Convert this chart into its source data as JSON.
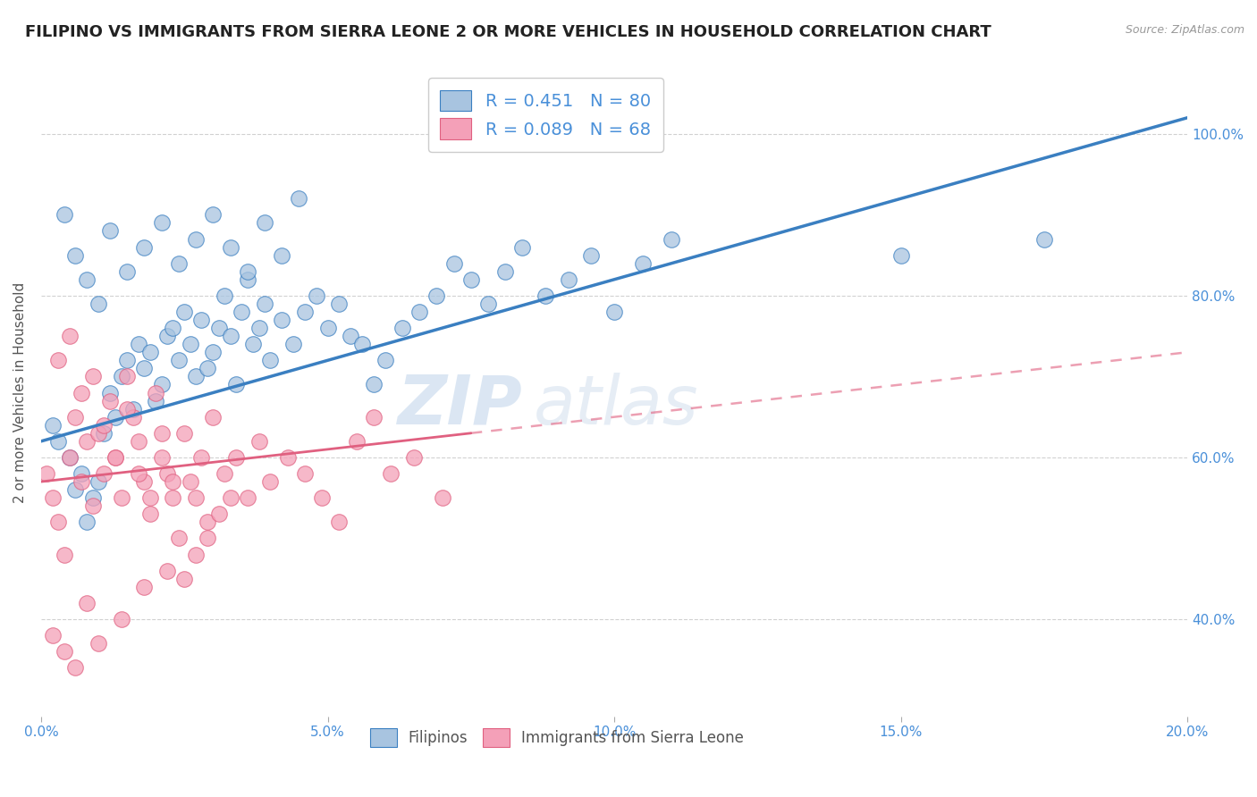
{
  "title": "FILIPINO VS IMMIGRANTS FROM SIERRA LEONE 2 OR MORE VEHICLES IN HOUSEHOLD CORRELATION CHART",
  "source": "Source: ZipAtlas.com",
  "ylabel": "2 or more Vehicles in Household",
  "watermark": "ZIPatlas",
  "filipinos": {
    "R": 0.451,
    "N": 80,
    "color": "#a8c4e0",
    "line_color": "#3a7fc1",
    "label": "Filipinos"
  },
  "sierra_leone": {
    "R": 0.089,
    "N": 68,
    "color": "#f4a0b8",
    "line_color": "#e06080",
    "label": "Immigrants from Sierra Leone"
  },
  "xlim": [
    0.0,
    20.0
  ],
  "ylim_bottom": 28.0,
  "ylim_top": 108.0,
  "yticks": [
    40.0,
    60.0,
    80.0,
    100.0
  ],
  "xticks": [
    0.0,
    5.0,
    10.0,
    15.0,
    20.0
  ],
  "background_color": "#ffffff",
  "grid_color": "#cccccc",
  "title_fontsize": 13,
  "axis_label_fontsize": 11,
  "tick_label_color": "#4a90d9",
  "legend_R_N_color": "#4a90d9",
  "fil_scatter_x": [
    0.2,
    0.3,
    0.5,
    0.6,
    0.7,
    0.8,
    0.9,
    1.0,
    1.1,
    1.2,
    1.3,
    1.4,
    1.5,
    1.6,
    1.7,
    1.8,
    1.9,
    2.0,
    2.1,
    2.2,
    2.3,
    2.4,
    2.5,
    2.6,
    2.7,
    2.8,
    2.9,
    3.0,
    3.1,
    3.2,
    3.3,
    3.4,
    3.5,
    3.6,
    3.7,
    3.8,
    3.9,
    4.0,
    4.2,
    4.4,
    4.6,
    4.8,
    5.0,
    5.2,
    5.4,
    5.6,
    5.8,
    6.0,
    6.3,
    6.6,
    6.9,
    7.2,
    7.5,
    7.8,
    8.1,
    8.4,
    8.8,
    9.2,
    9.6,
    10.0,
    10.5,
    11.0,
    0.4,
    0.6,
    0.8,
    1.0,
    1.2,
    1.5,
    1.8,
    2.1,
    2.4,
    2.7,
    3.0,
    3.3,
    3.6,
    3.9,
    4.2,
    4.5,
    15.0,
    17.5
  ],
  "fil_scatter_y": [
    64,
    62,
    60,
    56,
    58,
    52,
    55,
    57,
    63,
    68,
    65,
    70,
    72,
    66,
    74,
    71,
    73,
    67,
    69,
    75,
    76,
    72,
    78,
    74,
    70,
    77,
    71,
    73,
    76,
    80,
    75,
    69,
    78,
    82,
    74,
    76,
    79,
    72,
    77,
    74,
    78,
    80,
    76,
    79,
    75,
    74,
    69,
    72,
    76,
    78,
    80,
    84,
    82,
    79,
    83,
    86,
    80,
    82,
    85,
    78,
    84,
    87,
    90,
    85,
    82,
    79,
    88,
    83,
    86,
    89,
    84,
    87,
    90,
    86,
    83,
    89,
    85,
    92,
    85,
    87
  ],
  "sl_scatter_x": [
    0.1,
    0.2,
    0.3,
    0.4,
    0.5,
    0.6,
    0.7,
    0.8,
    0.9,
    1.0,
    1.1,
    1.2,
    1.3,
    1.4,
    1.5,
    1.6,
    1.7,
    1.8,
    1.9,
    2.0,
    2.1,
    2.2,
    2.3,
    2.4,
    2.5,
    2.6,
    2.7,
    2.8,
    2.9,
    3.0,
    3.2,
    3.4,
    3.6,
    3.8,
    4.0,
    4.3,
    4.6,
    4.9,
    5.2,
    5.5,
    5.8,
    6.1,
    6.5,
    7.0,
    0.3,
    0.5,
    0.7,
    0.9,
    1.1,
    1.3,
    1.5,
    1.7,
    1.9,
    2.1,
    2.3,
    2.5,
    2.7,
    2.9,
    3.1,
    3.3,
    0.2,
    0.4,
    0.6,
    0.8,
    1.0,
    1.4,
    1.8,
    2.2
  ],
  "sl_scatter_y": [
    58,
    55,
    52,
    48,
    60,
    65,
    57,
    62,
    54,
    63,
    58,
    67,
    60,
    55,
    70,
    65,
    62,
    57,
    53,
    68,
    60,
    58,
    55,
    50,
    63,
    57,
    55,
    60,
    52,
    65,
    58,
    60,
    55,
    62,
    57,
    60,
    58,
    55,
    52,
    62,
    65,
    58,
    60,
    55,
    72,
    75,
    68,
    70,
    64,
    60,
    66,
    58,
    55,
    63,
    57,
    45,
    48,
    50,
    53,
    55,
    38,
    36,
    34,
    42,
    37,
    40,
    44,
    46
  ],
  "fil_line_x0": 0.0,
  "fil_line_y0": 62.0,
  "fil_line_x1": 20.0,
  "fil_line_y1": 102.0,
  "sl_line_x0": 0.0,
  "sl_line_y0": 57.0,
  "sl_line_x1": 7.5,
  "sl_line_y1": 63.0,
  "sl_dash_x0": 7.5,
  "sl_dash_y0": 63.0,
  "sl_dash_x1": 20.0,
  "sl_dash_y1": 73.0
}
